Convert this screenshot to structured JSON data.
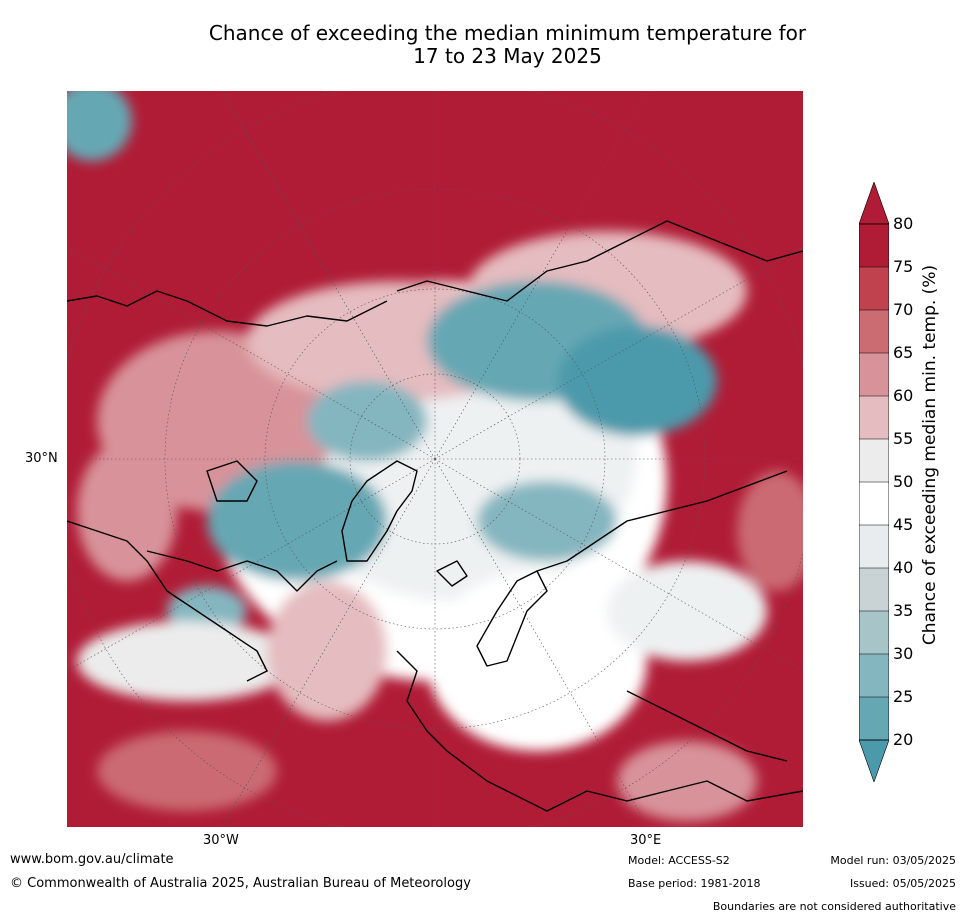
{
  "title": {
    "line1": "Chance of exceeding the median minimum temperature for",
    "line2": "17 to 23 May 2025"
  },
  "map": {
    "lat_label": "30°N",
    "lon_labels": [
      "30°W",
      "30°E"
    ],
    "projection": "north polar stereographic"
  },
  "colorbar": {
    "title": "Chance of exceeding median min. temp. (%)",
    "ticks": [
      "80",
      "75",
      "70",
      "65",
      "60",
      "55",
      "50",
      "45",
      "40",
      "35",
      "30",
      "25",
      "20"
    ],
    "colors": [
      "#b01c36",
      "#c0424f",
      "#cb6b72",
      "#d8939a",
      "#e5bcbf",
      "#ececec",
      "#ffffff",
      "#ffffff",
      "#e8ecee",
      "#c9d3d6",
      "#a7c4c9",
      "#84b6c0",
      "#66a7b4",
      "#4b9aab"
    ]
  },
  "footer": {
    "website": "www.bom.gov.au/climate",
    "copyright": "© Commonwealth of Australia 2025, Australian Bureau of Meteorology",
    "model": "Model: ACCESS-S2",
    "base_period": "Base period: 1981-2018",
    "model_run": "Model run: 03/05/2025",
    "issued": "Issued: 05/05/2025",
    "disclaimer": "Boundaries are not considered authoritative"
  }
}
